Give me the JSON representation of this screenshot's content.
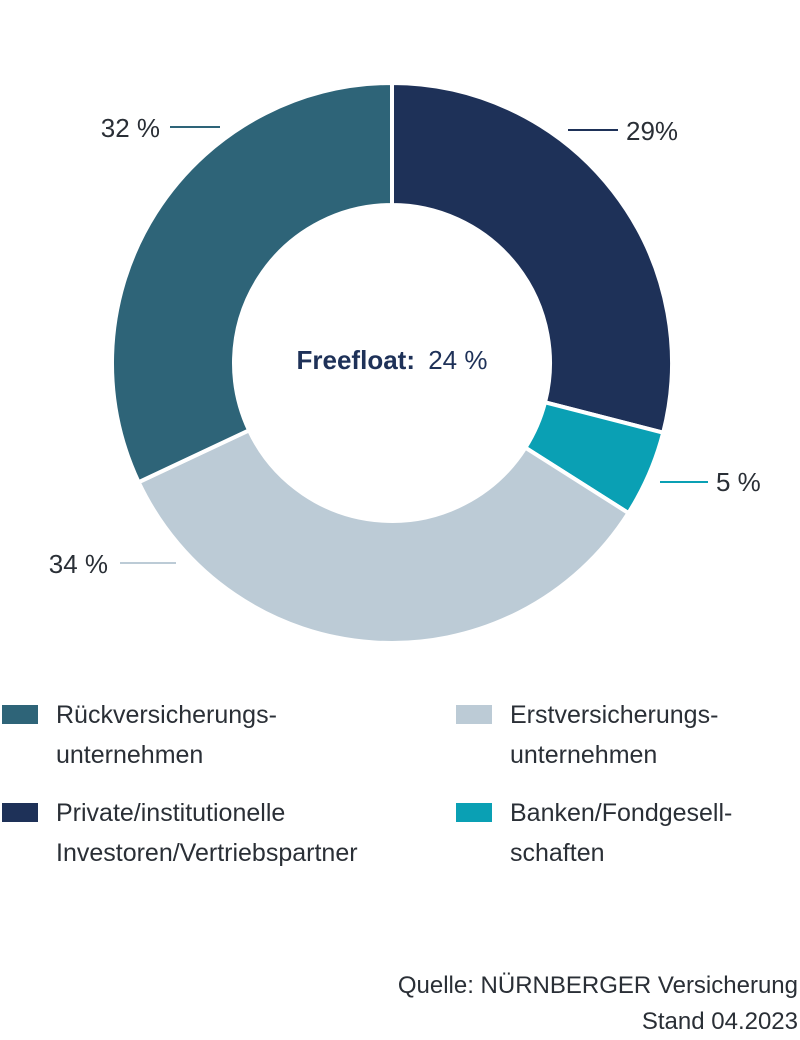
{
  "chart_data": {
    "type": "pie",
    "title": "",
    "center_label": {
      "bold": "Freefloat:",
      "value": "24 %"
    },
    "slices": [
      {
        "name": "Private/institutionelle Investoren/Vertriebspartner",
        "value": 29,
        "label": "29%",
        "color": "#1e3158"
      },
      {
        "name": "Banken/Fondgesellschaften",
        "value": 5,
        "label": "5 %",
        "color": "#0aa0b4"
      },
      {
        "name": "Erstversicherungsunternehmen",
        "value": 34,
        "label": "34 %",
        "color": "#bccbd6"
      },
      {
        "name": "Rückversicherungsunternehmen",
        "value": 32,
        "label": "32 %",
        "color": "#2e6478"
      }
    ],
    "legend": [
      {
        "lines": [
          "Rückversicherungs-",
          "unternehmen"
        ],
        "color": "#2e6478"
      },
      {
        "lines": [
          "Erstversicherungs-",
          "unternehmen"
        ],
        "color": "#bccbd6"
      },
      {
        "lines": [
          "Private/institutionelle",
          "Investoren/Vertriebspartner"
        ],
        "color": "#1e3158"
      },
      {
        "lines": [
          "Banken/Fondgesell-",
          "schaften"
        ],
        "color": "#0aa0b4"
      }
    ]
  },
  "source": {
    "line1": "Quelle: NÜRNBERGER Versicherung",
    "line2": "Stand 04.2023"
  }
}
